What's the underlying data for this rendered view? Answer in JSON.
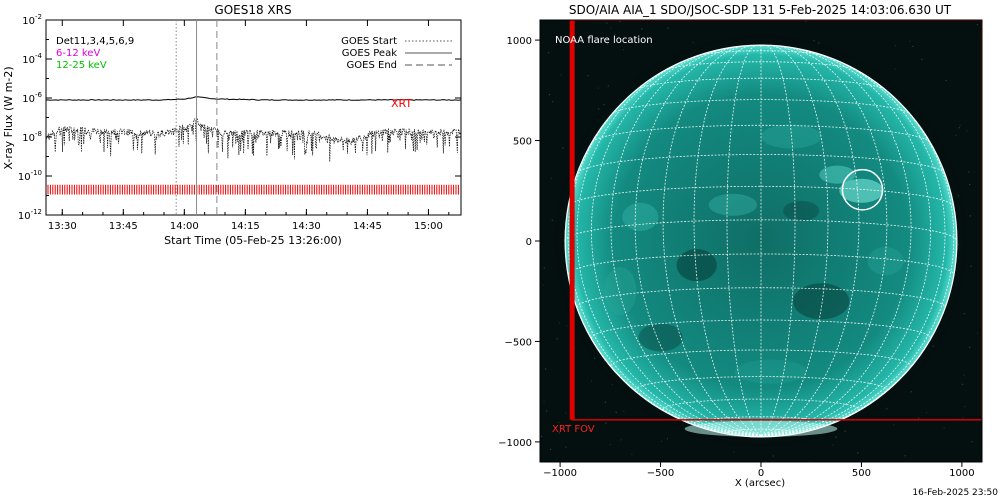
{
  "chart_data": [
    {
      "type": "line",
      "title": "GOES18 XRS",
      "xlabel": "Start Time (05-Feb-25 13:26:00)",
      "ylabel": "X-ray Flux (W m-2)",
      "y_scale": "log",
      "ylim_exponents": [
        -12,
        -2
      ],
      "y_tick_exponents": [
        -12,
        -10,
        -8,
        -6,
        -4,
        -2
      ],
      "y_tick_base": "10",
      "xlim": [
        "13:26",
        "15:08"
      ],
      "x_ticks": [
        "13:30",
        "13:45",
        "14:00",
        "14:15",
        "14:30",
        "14:45",
        "15:00"
      ],
      "legend_top_left": [
        "Det11,3,4,5,6,9",
        "6-12 keV",
        "12-25 keV"
      ],
      "legend_top_left_colors": [
        "#000000",
        "#e000e0",
        "#00c000"
      ],
      "legend_top_right": [
        "GOES Start",
        "GOES Peak",
        "GOES End"
      ],
      "markers": {
        "goes_start": "13:58",
        "goes_peak": "14:03",
        "goes_end": "14:08"
      },
      "series": [
        {
          "name": "",
          "x": [
            "13:26",
            "13:35",
            "13:45",
            "13:55",
            "14:00",
            "14:03",
            "14:08",
            "14:20",
            "14:35",
            "14:50",
            "15:00",
            "15:08"
          ],
          "log10_flux": [
            -6.1,
            -6.1,
            -6.1,
            -6.1,
            -6.05,
            -5.95,
            -6.05,
            -6.1,
            -6.1,
            -6.1,
            -6.1,
            -6.1
          ]
        },
        {
          "name": "",
          "x": [
            "13:26",
            "13:30",
            "13:40",
            "13:50",
            "13:55",
            "14:00",
            "14:03",
            "14:06",
            "14:10",
            "14:20",
            "14:30",
            "14:40",
            "14:45",
            "14:50",
            "15:00",
            "15:08"
          ],
          "log10_flux": [
            -7.9,
            -7.6,
            -7.7,
            -7.8,
            -7.8,
            -7.5,
            -7.2,
            -7.6,
            -7.8,
            -7.8,
            -7.8,
            -8.2,
            -7.9,
            -7.7,
            -7.8,
            -7.7
          ]
        }
      ],
      "annotation": "XRT",
      "annotation_color": "#ff0000"
    },
    {
      "type": "heatmap",
      "title": "SDO/AIA AIA_1 SDO/JSOC-SDP 131  5-Feb-2025 14:03:06.630 UT",
      "xlabel": "X (arcsec)",
      "ylabel": "",
      "xlim": [
        -1100,
        1100
      ],
      "ylim": [
        -1100,
        1100
      ],
      "x_ticks": [
        -1000,
        -500,
        0,
        500,
        1000
      ],
      "y_ticks": [
        -1000,
        -500,
        0,
        500,
        1000
      ],
      "solar_radius_arcsec": 975,
      "grid": true,
      "flare_location": {
        "x": 505,
        "y": 255,
        "radius": 100
      },
      "xrt_fov": {
        "x_min": -940,
        "x_max": 1100,
        "y_min": -890,
        "y_max": 1100
      },
      "labels": {
        "legend": "NOAA flare location",
        "fov_label": "XRT FOV"
      },
      "colors": {
        "disk": "#1aa89a",
        "fov": "#dd0000"
      }
    }
  ],
  "footer": {
    "timestamp": "16-Feb-2025 23:50"
  }
}
